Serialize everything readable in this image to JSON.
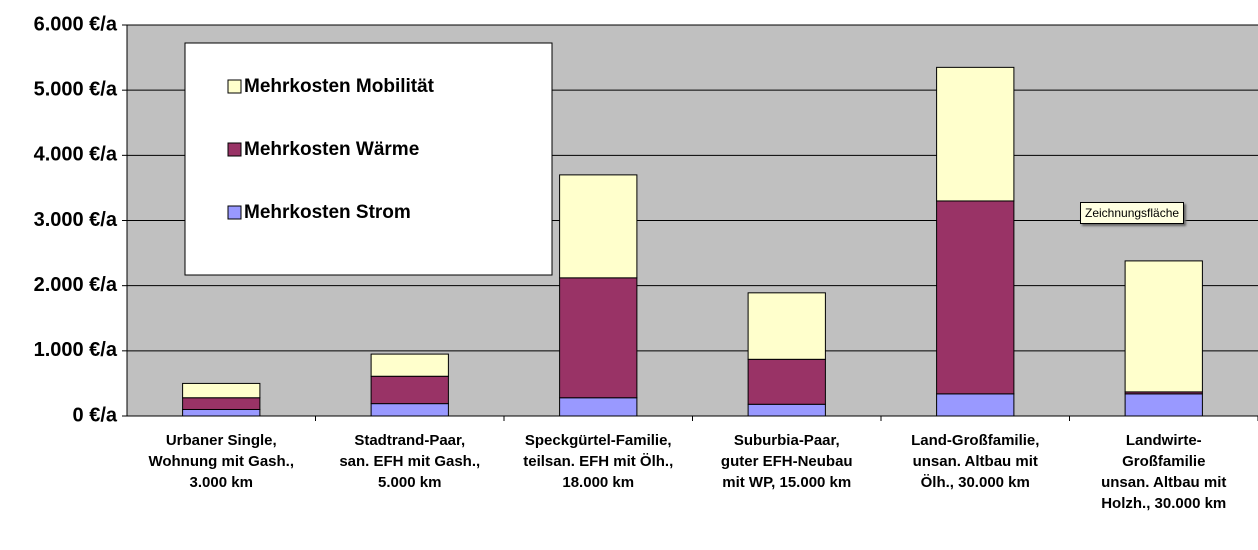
{
  "chart_data": {
    "type": "stacked_bar",
    "categories": [
      "Urbaner Single,\nWohnung mit Gash.,\n3.000 km",
      "Stadtrand-Paar,\nsan. EFH mit Gash.,\n5.000 km",
      "Speckgürtel-Familie,\nteilsan. EFH mit Ölh.,\n18.000 km",
      "Suburbia-Paar,\nguter EFH-Neubau\nmit WP, 15.000 km",
      "Land-Großfamilie,\nunsan. Altbau mit\nÖlh., 30.000 km",
      "Landwirte-\nGroßfamilie\nunsan. Altbau mit\nHolzh., 30.000 km"
    ],
    "series": [
      {
        "name": "Mehrkosten Strom",
        "color": "#9999ff",
        "values": [
          100,
          190,
          280,
          180,
          340,
          340
        ]
      },
      {
        "name": "Mehrkosten Wärme",
        "color": "#993366",
        "values": [
          180,
          420,
          1840,
          690,
          2960,
          30
        ]
      },
      {
        "name": "Mehrkosten Mobilität",
        "color": "#ffffcc",
        "values": [
          220,
          340,
          1580,
          1020,
          2050,
          2010
        ]
      }
    ],
    "ylim": [
      0,
      6000
    ],
    "yticks": [
      {
        "value": 0,
        "label": "0 €/a"
      },
      {
        "value": 1000,
        "label": "1.000 €/a"
      },
      {
        "value": 2000,
        "label": "2.000 €/a"
      },
      {
        "value": 3000,
        "label": "3.000 €/a"
      },
      {
        "value": 4000,
        "label": "4.000 €/a"
      },
      {
        "value": 5000,
        "label": "5.000 €/a"
      },
      {
        "value": 6000,
        "label": "6.000 €/a"
      }
    ],
    "grid": true,
    "legend": "upper left",
    "annotation": "Zeichnungsfläche"
  }
}
